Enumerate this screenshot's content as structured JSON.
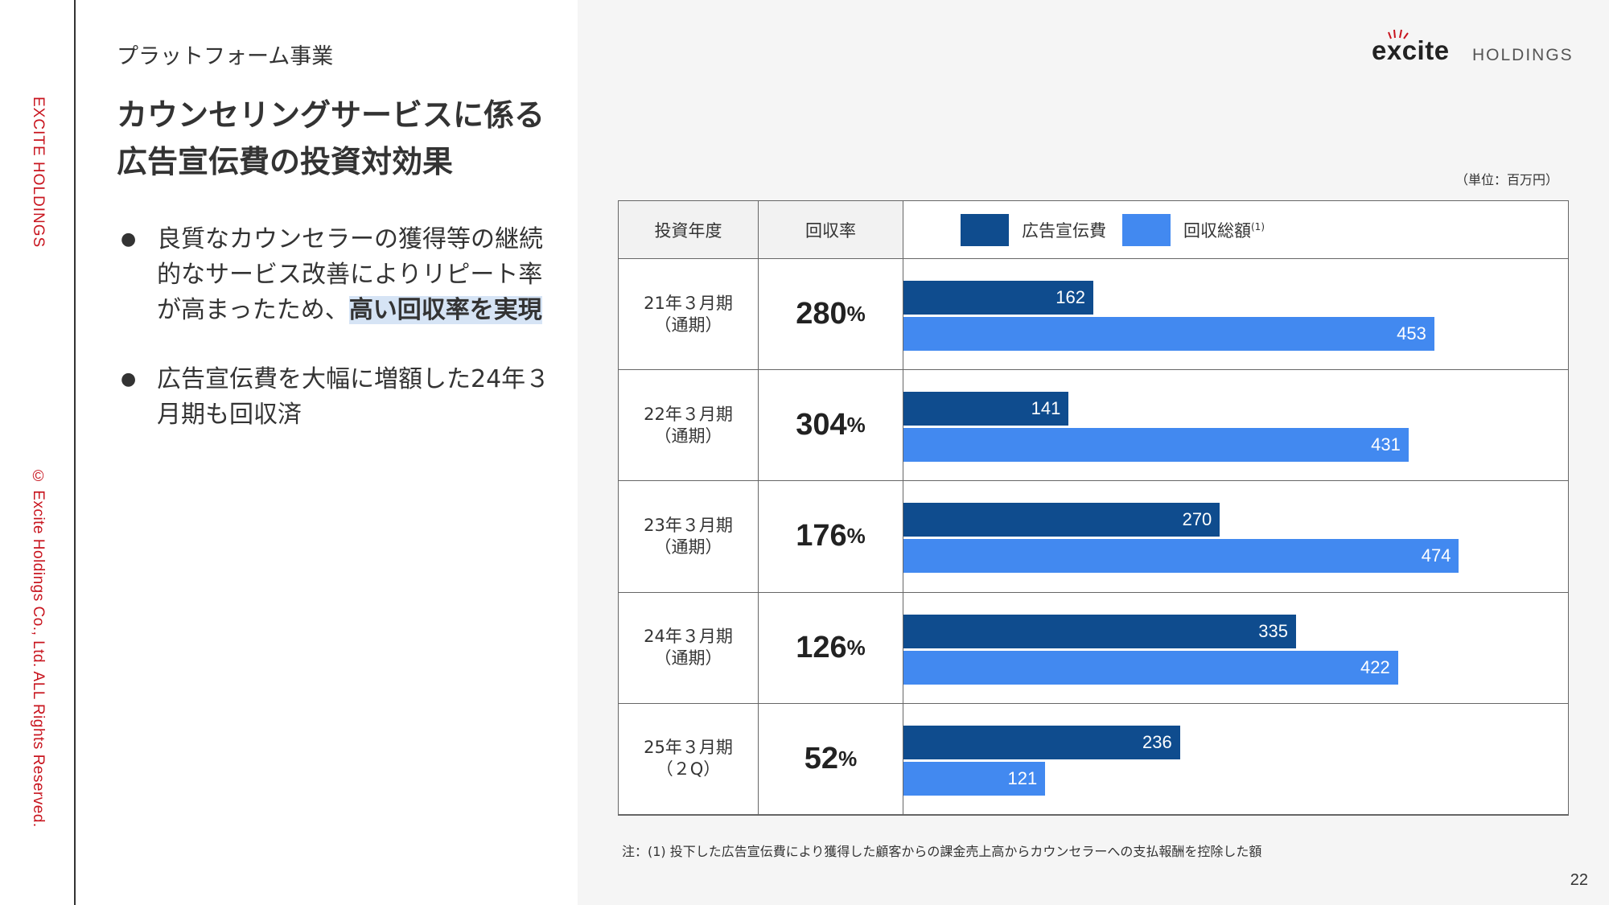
{
  "side": {
    "company": "EXCITE HOLDINGS",
    "copyright": "© Excite Holdings Co., Ltd. ALL Rights Reserved."
  },
  "header": {
    "section": "プラットフォーム事業",
    "title_line1": "カウンセリングサービスに係る",
    "title_line2": "広告宣伝費の投資対効果"
  },
  "logo": {
    "word": "excite",
    "holdings": "HOLDINGS"
  },
  "bullets": [
    {
      "text_before": "良質なカウンセラーの獲得等の継続的なサービス改善によりリピート率が高まったため、",
      "highlight": "高い回収率を実現"
    },
    {
      "text_before": "広告宣伝費を大幅に増額した24年３月期も回収済",
      "highlight": ""
    }
  ],
  "unit": "（単位：百万円）",
  "table": {
    "col_period": "投資年度",
    "col_rate": "回収率",
    "legend_cost": "広告宣伝費",
    "legend_recovery": "回収総額",
    "legend_recovery_note": "(1)",
    "pct": "%"
  },
  "colors": {
    "cost": "#0f4c8e",
    "recovery": "#4289f0"
  },
  "chart_data": {
    "type": "bar",
    "orientation": "horizontal",
    "categories": [
      "21年３月期（通期）",
      "22年３月期（通期）",
      "23年３月期（通期）",
      "24年３月期（通期）",
      "25年３月期（２Q）"
    ],
    "category_lines": [
      [
        "21年３月期",
        "（通期）"
      ],
      [
        "22年３月期",
        "（通期）"
      ],
      [
        "23年３月期",
        "（通期）"
      ],
      [
        "24年３月期",
        "（通期）"
      ],
      [
        "25年３月期",
        "（２Q）"
      ]
    ],
    "recovery_rate": [
      "280",
      "304",
      "176",
      "126",
      "52"
    ],
    "series": [
      {
        "name": "広告宣伝費",
        "values": [
          162,
          141,
          270,
          335,
          236
        ]
      },
      {
        "name": "回収総額",
        "values": [
          453,
          431,
          474,
          422,
          121
        ]
      }
    ],
    "xlim": [
      0,
      508
    ],
    "legend": "top",
    "grid": false
  },
  "note": "注：(1) 投下した広告宣伝費により獲得した顧客からの課金売上高からカウンセラーへの支払報酬を控除した額",
  "page_number": "22"
}
